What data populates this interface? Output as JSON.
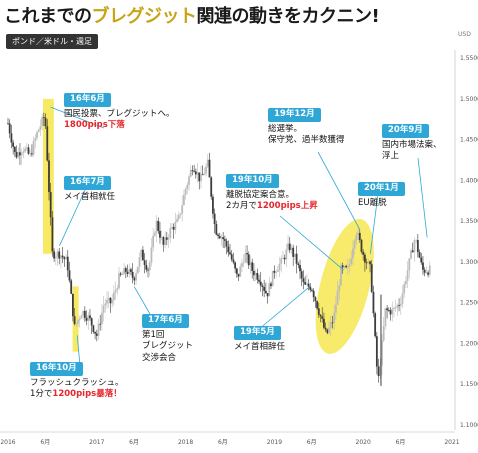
{
  "title": {
    "part1": "これまでの",
    "highlight": "ブレグジット",
    "part2": "関連の動きをカクニン!"
  },
  "pair_label": "ポンド／米ドル・週足",
  "colors": {
    "accent": "#2ea7d6",
    "highlight": "#f5e33a",
    "bull": "#bbbbbb",
    "bear": "#3c3c3c",
    "red": "#e5262c"
  },
  "annotations": [
    {
      "id": "a1",
      "header": "16年6月",
      "lines": [
        "国民投票、ブレグジットへ。"
      ],
      "red": "1800pips下落"
    },
    {
      "id": "a2",
      "header": "16年7月",
      "lines": [
        "メイ首相就任"
      ],
      "red": ""
    },
    {
      "id": "a3",
      "header": "16年10月",
      "lines": [
        "フラッシュクラッシュ。"
      ],
      "red_prefix": "1分で",
      "red": "1200pips暴落！"
    },
    {
      "id": "a4",
      "header": "17年6月",
      "lines": [
        "第1回",
        "ブレグジット",
        "交渉会合"
      ],
      "red": ""
    },
    {
      "id": "a5",
      "header": "19年5月",
      "lines": [
        "メイ首相辞任"
      ],
      "red": ""
    },
    {
      "id": "a6",
      "header": "19年10月",
      "lines": [
        "離脱協定案合意。"
      ],
      "red_prefix": "2カ月で",
      "red": "1200pips上昇"
    },
    {
      "id": "a7",
      "header": "19年12月",
      "lines": [
        "総選挙。",
        "保守党、過半数獲得"
      ],
      "red": ""
    },
    {
      "id": "a8",
      "header": "20年1月",
      "lines": [
        "EU離脱"
      ],
      "red": ""
    },
    {
      "id": "a9",
      "header": "20年9月",
      "lines": [
        "国内市場法案、",
        "浮上"
      ],
      "red": ""
    }
  ],
  "chart_data": {
    "type": "candlestick",
    "title": "ポンド／米ドル・週足",
    "y_unit": "USD",
    "ylim": [
      1.1,
      1.56
    ],
    "y_ticks": [
      "1.5500",
      "1.5000",
      "1.4500",
      "1.4000",
      "1.3500",
      "1.3000",
      "1.2500",
      "1.2000",
      "1.1500",
      "1.1000"
    ],
    "x_labels": [
      "2016",
      "6月",
      "2017",
      "6月",
      "2018",
      "6月",
      "2019",
      "6月",
      "2020",
      "6月",
      "2021"
    ],
    "grid": false,
    "path_points": [
      [
        "2016-01",
        1.47
      ],
      [
        "2016-02",
        1.43
      ],
      [
        "2016-03",
        1.44
      ],
      [
        "2016-04",
        1.43
      ],
      [
        "2016-05",
        1.46
      ],
      [
        "2016-06",
        1.48
      ],
      [
        "2016-07",
        1.31
      ],
      [
        "2016-08",
        1.31
      ],
      [
        "2016-09",
        1.3
      ],
      [
        "2016-10",
        1.22
      ],
      [
        "2016-11",
        1.24
      ],
      [
        "2016-12",
        1.23
      ],
      [
        "2017-01",
        1.21
      ],
      [
        "2017-02",
        1.25
      ],
      [
        "2017-03",
        1.25
      ],
      [
        "2017-04",
        1.28
      ],
      [
        "2017-05",
        1.29
      ],
      [
        "2017-06",
        1.28
      ],
      [
        "2017-07",
        1.31
      ],
      [
        "2017-08",
        1.29
      ],
      [
        "2017-09",
        1.35
      ],
      [
        "2017-10",
        1.32
      ],
      [
        "2017-11",
        1.34
      ],
      [
        "2017-12",
        1.35
      ],
      [
        "2018-01",
        1.39
      ],
      [
        "2018-02",
        1.42
      ],
      [
        "2018-03",
        1.4
      ],
      [
        "2018-04",
        1.42
      ],
      [
        "2018-05",
        1.34
      ],
      [
        "2018-06",
        1.33
      ],
      [
        "2018-07",
        1.31
      ],
      [
        "2018-08",
        1.28
      ],
      [
        "2018-09",
        1.31
      ],
      [
        "2018-10",
        1.29
      ],
      [
        "2018-11",
        1.28
      ],
      [
        "2018-12",
        1.26
      ],
      [
        "2019-01",
        1.29
      ],
      [
        "2019-02",
        1.3
      ],
      [
        "2019-03",
        1.32
      ],
      [
        "2019-04",
        1.3
      ],
      [
        "2019-05",
        1.27
      ],
      [
        "2019-06",
        1.27
      ],
      [
        "2019-07",
        1.24
      ],
      [
        "2019-08",
        1.21
      ],
      [
        "2019-09",
        1.23
      ],
      [
        "2019-10",
        1.29
      ],
      [
        "2019-11",
        1.29
      ],
      [
        "2019-12",
        1.34
      ],
      [
        "2020-01",
        1.31
      ],
      [
        "2020-02",
        1.29
      ],
      [
        "2020-03",
        1.15
      ],
      [
        "2020-04",
        1.24
      ],
      [
        "2020-05",
        1.24
      ],
      [
        "2020-06",
        1.25
      ],
      [
        "2020-07",
        1.29
      ],
      [
        "2020-08",
        1.33
      ],
      [
        "2020-09",
        1.29
      ],
      [
        "2020-10",
        1.29
      ]
    ],
    "highlights": [
      {
        "label": "2016年6月 1800pips下落",
        "from": "2016-06",
        "to": "2016-07",
        "y_range": [
          1.31,
          1.5
        ]
      },
      {
        "label": "2016年10月 1200pips暴落",
        "from": "2016-10",
        "to": "2016-10",
        "y_range": [
          1.19,
          1.27
        ]
      },
      {
        "label": "2019年10月 1200pips上昇",
        "from": "2019-08",
        "to": "2019-12",
        "y_range": [
          1.19,
          1.35
        ]
      }
    ]
  }
}
